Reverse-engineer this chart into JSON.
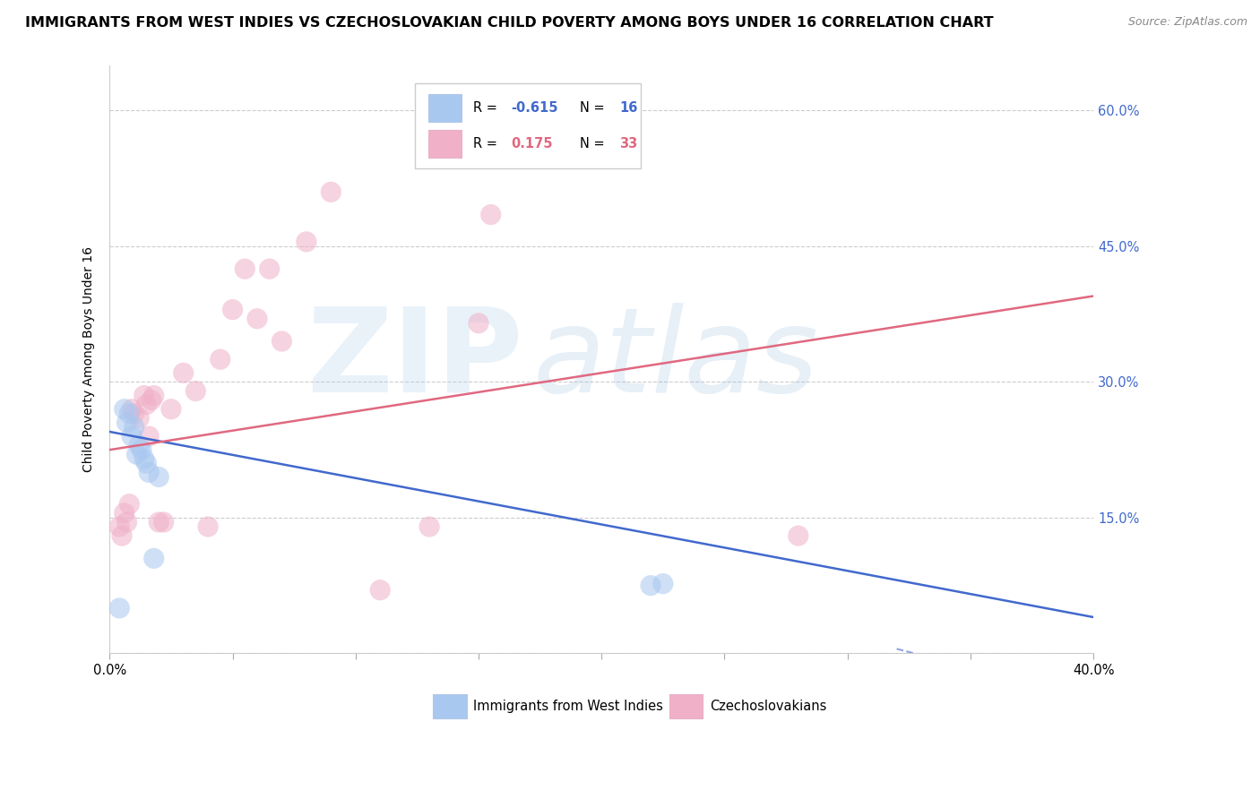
{
  "title": "IMMIGRANTS FROM WEST INDIES VS CZECHOSLOVAKIAN CHILD POVERTY AMONG BOYS UNDER 16 CORRELATION CHART",
  "source": "Source: ZipAtlas.com",
  "ylabel": "Child Poverty Among Boys Under 16",
  "legend_label1": "Immigrants from West Indies",
  "legend_label2": "Czechoslovakians",
  "r1": -0.615,
  "n1": 16,
  "r2": 0.175,
  "n2": 33,
  "xlim": [
    0.0,
    0.4
  ],
  "ylim": [
    0.0,
    0.65
  ],
  "yticks": [
    0.0,
    0.15,
    0.3,
    0.45,
    0.6
  ],
  "ytick_labels": [
    "",
    "15.0%",
    "30.0%",
    "45.0%",
    "60.0%"
  ],
  "xticks": [
    0.0,
    0.05,
    0.1,
    0.15,
    0.2,
    0.25,
    0.3,
    0.35,
    0.4
  ],
  "xtick_labels": [
    "0.0%",
    "",
    "",
    "",
    "",
    "",
    "",
    "",
    "40.0%"
  ],
  "grid_color": "#cccccc",
  "watermark_zip": "ZIP",
  "watermark_atlas": "atlas",
  "watermark_zip_color": "#b8d4ee",
  "watermark_atlas_color": "#a0c0e0",
  "blue_color": "#a8c8f0",
  "pink_color": "#f0b0c8",
  "blue_line_color": "#4169cd",
  "pink_line_color": "#e06880",
  "blue_scatter_x": [
    0.004,
    0.006,
    0.007,
    0.008,
    0.009,
    0.01,
    0.011,
    0.012,
    0.013,
    0.014,
    0.015,
    0.016,
    0.018,
    0.02,
    0.22,
    0.225
  ],
  "blue_scatter_y": [
    0.05,
    0.27,
    0.255,
    0.265,
    0.24,
    0.25,
    0.22,
    0.23,
    0.225,
    0.215,
    0.21,
    0.2,
    0.105,
    0.195,
    0.075,
    0.077
  ],
  "pink_scatter_x": [
    0.004,
    0.005,
    0.006,
    0.007,
    0.008,
    0.009,
    0.01,
    0.012,
    0.014,
    0.015,
    0.016,
    0.017,
    0.018,
    0.02,
    0.022,
    0.025,
    0.03,
    0.035,
    0.04,
    0.045,
    0.05,
    0.055,
    0.06,
    0.065,
    0.07,
    0.08,
    0.09,
    0.11,
    0.13,
    0.15,
    0.155,
    0.175,
    0.28
  ],
  "pink_scatter_y": [
    0.14,
    0.13,
    0.155,
    0.145,
    0.165,
    0.27,
    0.265,
    0.26,
    0.285,
    0.275,
    0.24,
    0.28,
    0.285,
    0.145,
    0.145,
    0.27,
    0.31,
    0.29,
    0.14,
    0.325,
    0.38,
    0.425,
    0.37,
    0.425,
    0.345,
    0.455,
    0.51,
    0.07,
    0.14,
    0.365,
    0.485,
    0.57,
    0.13
  ],
  "blue_trendline": [
    0.0,
    0.245,
    0.4,
    0.04
  ],
  "pink_trendline": [
    0.0,
    0.225,
    0.4,
    0.395
  ],
  "blue_dash_ext": [
    0.32,
    0.005,
    0.42,
    -0.065
  ],
  "bg_color": "#ffffff",
  "title_fontsize": 11.5,
  "source_fontsize": 9,
  "ylabel_fontsize": 10,
  "tick_fontsize": 10.5,
  "right_tick_color": "#4169cd",
  "scatter_size": 280,
  "scatter_alpha": 0.55
}
